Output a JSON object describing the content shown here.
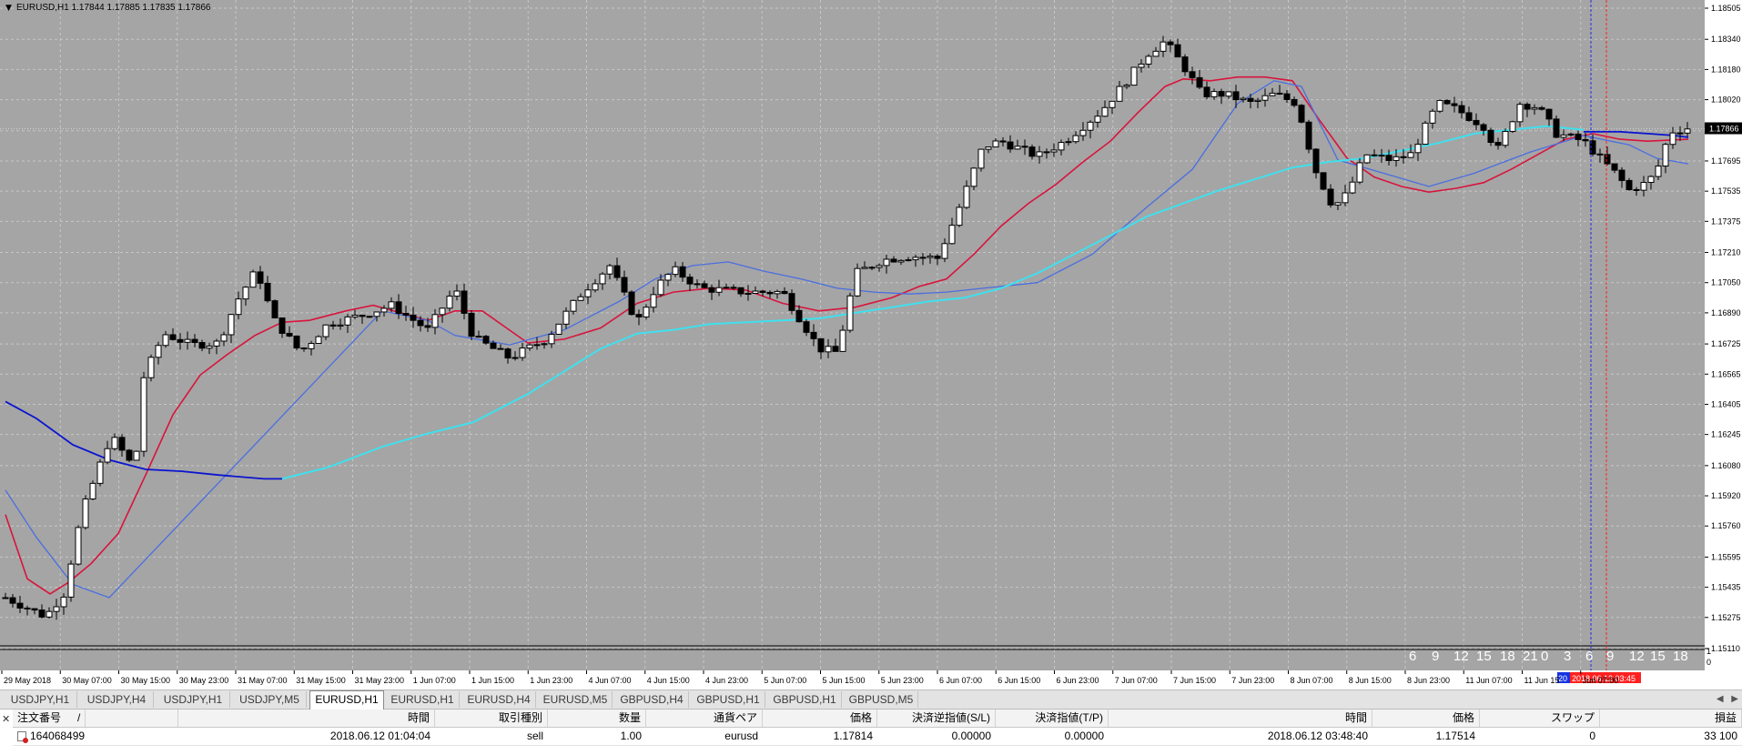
{
  "chart": {
    "header": "EURUSD,H1  1.17844 1.17885 1.17835 1.17866",
    "price_axis": [
      "1.18505",
      "1.18340",
      "1.18180",
      "1.18020",
      "1.17855",
      "1.17695",
      "1.17535",
      "1.17375",
      "1.17210",
      "1.17050",
      "1.16890",
      "1.16725",
      "1.16565",
      "1.16405",
      "1.16245",
      "1.16080",
      "1.15920",
      "1.15760",
      "1.15595",
      "1.15435",
      "1.15275",
      "1.15110"
    ],
    "current_price": "1.17866",
    "time_axis": [
      "29 May 2018",
      "30 May 07:00",
      "30 May 15:00",
      "30 May 23:00",
      "31 May 07:00",
      "31 May 15:00",
      "31 May 23:00",
      "1 Jun 07:00",
      "1 Jun 15:00",
      "1 Jun 23:00",
      "4 Jun 07:00",
      "4 Jun 15:00",
      "4 Jun 23:00",
      "5 Jun 07:00",
      "5 Jun 15:00",
      "5 Jun 23:00",
      "6 Jun 07:00",
      "6 Jun 15:00",
      "6 Jun 23:00",
      "7 Jun 07:00",
      "7 Jun 15:00",
      "7 Jun 23:00",
      "8 Jun 07:00",
      "8 Jun 15:00",
      "8 Jun 23:00",
      "11 Jun 07:00",
      "11 Jun 15",
      "Jun 07:00"
    ],
    "hour_markers": [
      "6",
      "9",
      "12",
      "15",
      "18",
      "21",
      "0",
      "3",
      "6",
      "9",
      "12",
      "15",
      "18"
    ],
    "marker_blue": "20",
    "marker_red": "2018.06.12 03:45",
    "vol_axis": [
      "1",
      "0"
    ],
    "colors": {
      "background": "#a5a5a5",
      "grid": "#c6c6c6",
      "bull_candle": "#ffffff",
      "bear_candle": "#000000",
      "ma_red": "#d8143c",
      "ma_blue": "#4a6ee0",
      "ma_navy": "#0a14d0",
      "ma_cyan": "#3fe0ee",
      "marker_blue": "#1633e0",
      "marker_red": "#ff2020"
    }
  },
  "tabs": [
    {
      "label": "USDJPY,H1",
      "active": false
    },
    {
      "label": "USDJPY,H4",
      "active": false
    },
    {
      "label": "USDJPY,H1",
      "active": false
    },
    {
      "label": "USDJPY,M5",
      "active": false
    },
    {
      "label": "EURUSD,H1",
      "active": true
    },
    {
      "label": "EURUSD,H1",
      "active": false
    },
    {
      "label": "EURUSD,H4",
      "active": false
    },
    {
      "label": "EURUSD,M5",
      "active": false
    },
    {
      "label": "GBPUSD,H4",
      "active": false
    },
    {
      "label": "GBPUSD,H1",
      "active": false
    },
    {
      "label": "GBPUSD,H1",
      "active": false
    },
    {
      "label": "GBPUSD,M5",
      "active": false
    }
  ],
  "terminal": {
    "columns": [
      "注文番号",
      "/",
      "時間",
      "取引種別",
      "数量",
      "通貨ペア",
      "価格",
      "決済逆指値(S/L)",
      "決済指値(T/P)",
      "時間",
      "価格",
      "スワップ",
      "損益"
    ],
    "row": {
      "order": "164068499",
      "open_time": "2018.06.12 01:04:04",
      "type": "sell",
      "volume": "1.00",
      "symbol": "eurusd",
      "open_price": "1.17814",
      "sl": "0.00000",
      "tp": "0.00000",
      "close_time": "2018.06.12 03:48:40",
      "close_price": "1.17514",
      "swap": "0",
      "profit": "33 100"
    }
  }
}
